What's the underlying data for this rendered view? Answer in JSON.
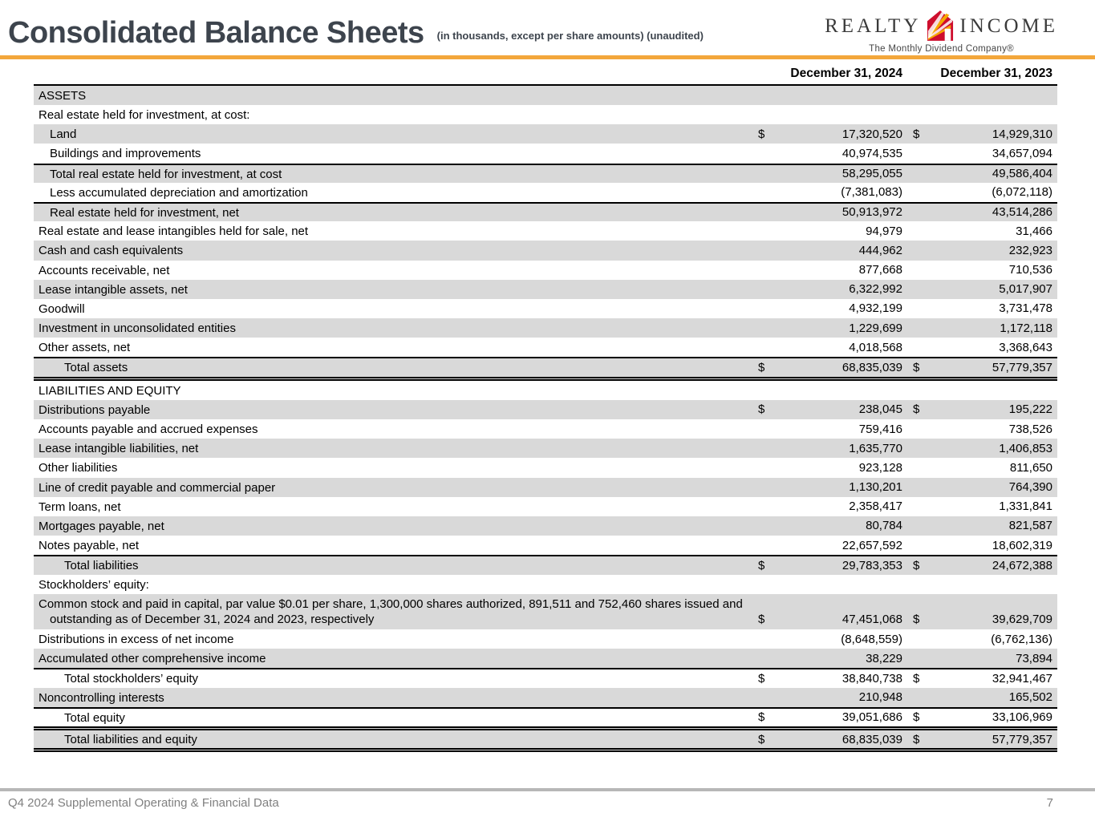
{
  "page": {
    "title": "Consolidated Balance Sheets",
    "subtitle": "(in thousands, except per share amounts) (unaudited)"
  },
  "logo": {
    "word_left": "REALTY",
    "word_right": "INCOME",
    "tagline": "The Monthly Dividend Company®"
  },
  "colors": {
    "accent_gold": "#F3A73B",
    "row_shade": "#D9D9D9",
    "title_text": "#3D444D",
    "logo_house_red": "#CE0E2D",
    "logo_ray_orange": "#F6A800",
    "footer_gray": "#808080"
  },
  "table": {
    "columns": [
      "December 31, 2024",
      "December 31, 2023"
    ],
    "rows": [
      {
        "label": "ASSETS",
        "d1": "",
        "v1": "",
        "d2": "",
        "v2": "",
        "indent": 0,
        "shade": true
      },
      {
        "label": "Real estate held for investment, at cost:",
        "d1": "",
        "v1": "",
        "d2": "",
        "v2": "",
        "indent": 0,
        "shade": false
      },
      {
        "label": "Land",
        "d1": "$",
        "v1": "17,320,520",
        "d2": "$",
        "v2": "14,929,310",
        "indent": 1,
        "shade": true
      },
      {
        "label": "Buildings and improvements",
        "d1": "",
        "v1": "40,974,535",
        "d2": "",
        "v2": "34,657,094",
        "indent": 1,
        "shade": false
      },
      {
        "label": "Total real estate held for investment, at cost",
        "d1": "",
        "v1": "58,295,055",
        "d2": "",
        "v2": "49,586,404",
        "indent": 1,
        "shade": true,
        "bt": "single"
      },
      {
        "label": "Less accumulated depreciation and amortization",
        "d1": "",
        "v1": "(7,381,083)",
        "d2": "",
        "v2": "(6,072,118)",
        "indent": 1,
        "shade": false
      },
      {
        "label": "Real estate held for investment, net",
        "d1": "",
        "v1": "50,913,972",
        "d2": "",
        "v2": "43,514,286",
        "indent": 1,
        "shade": true,
        "bt": "single"
      },
      {
        "label": "Real estate and lease intangibles held for sale, net",
        "d1": "",
        "v1": "94,979",
        "d2": "",
        "v2": "31,466",
        "indent": 0,
        "shade": false
      },
      {
        "label": "Cash and cash equivalents",
        "d1": "",
        "v1": "444,962",
        "d2": "",
        "v2": "232,923",
        "indent": 0,
        "shade": true
      },
      {
        "label": "Accounts receivable, net",
        "d1": "",
        "v1": "877,668",
        "d2": "",
        "v2": "710,536",
        "indent": 0,
        "shade": false
      },
      {
        "label": "Lease intangible assets, net",
        "d1": "",
        "v1": "6,322,992",
        "d2": "",
        "v2": "5,017,907",
        "indent": 0,
        "shade": true
      },
      {
        "label": "Goodwill",
        "d1": "",
        "v1": "4,932,199",
        "d2": "",
        "v2": "3,731,478",
        "indent": 0,
        "shade": false
      },
      {
        "label": "Investment in unconsolidated entities",
        "d1": "",
        "v1": "1,229,699",
        "d2": "",
        "v2": "1,172,118",
        "indent": 0,
        "shade": true
      },
      {
        "label": "Other assets, net",
        "d1": "",
        "v1": "4,018,568",
        "d2": "",
        "v2": "3,368,643",
        "indent": 0,
        "shade": false
      },
      {
        "label": "Total assets",
        "d1": "$",
        "v1": "68,835,039",
        "d2": "$",
        "v2": "57,779,357",
        "indent": 2,
        "shade": true,
        "bt": "single",
        "bb": "double"
      },
      {
        "label": "LIABILITIES AND EQUITY",
        "d1": "",
        "v1": "",
        "d2": "",
        "v2": "",
        "indent": 0,
        "shade": false
      },
      {
        "label": "Distributions payable",
        "d1": "$",
        "v1": "238,045",
        "d2": "$",
        "v2": "195,222",
        "indent": 0,
        "shade": true
      },
      {
        "label": "Accounts payable and accrued expenses",
        "d1": "",
        "v1": "759,416",
        "d2": "",
        "v2": "738,526",
        "indent": 0,
        "shade": false
      },
      {
        "label": "Lease intangible liabilities, net",
        "d1": "",
        "v1": "1,635,770",
        "d2": "",
        "v2": "1,406,853",
        "indent": 0,
        "shade": true
      },
      {
        "label": "Other liabilities",
        "d1": "",
        "v1": "923,128",
        "d2": "",
        "v2": "811,650",
        "indent": 0,
        "shade": false
      },
      {
        "label": "Line of credit payable and commercial paper",
        "d1": "",
        "v1": "1,130,201",
        "d2": "",
        "v2": "764,390",
        "indent": 0,
        "shade": true
      },
      {
        "label": "Term loans, net",
        "d1": "",
        "v1": "2,358,417",
        "d2": "",
        "v2": "1,331,841",
        "indent": 0,
        "shade": false
      },
      {
        "label": "Mortgages payable, net",
        "d1": "",
        "v1": "80,784",
        "d2": "",
        "v2": "821,587",
        "indent": 0,
        "shade": true
      },
      {
        "label": "Notes payable, net",
        "d1": "",
        "v1": "22,657,592",
        "d2": "",
        "v2": "18,602,319",
        "indent": 0,
        "shade": false
      },
      {
        "label": "Total liabilities",
        "d1": "$",
        "v1": "29,783,353",
        "d2": "$",
        "v2": "24,672,388",
        "indent": 2,
        "shade": true,
        "bt": "single"
      },
      {
        "label": "Stockholders’ equity:",
        "d1": "",
        "v1": "",
        "d2": "",
        "v2": "",
        "indent": 0,
        "shade": false
      },
      {
        "label": "Common stock and paid in capital, par value $0.01 per share, 1,300,000 shares authorized, 891,511 and 752,460 shares issued and outstanding as of December 31, 2024 and 2023, respectively",
        "d1": "$",
        "v1": "47,451,068",
        "d2": "$",
        "v2": "39,629,709",
        "indent": 0,
        "shade": true,
        "wrap": true
      },
      {
        "label": "Distributions in excess of net income",
        "d1": "",
        "v1": "(8,648,559)",
        "d2": "",
        "v2": "(6,762,136)",
        "indent": 0,
        "shade": false
      },
      {
        "label": "Accumulated other comprehensive income",
        "d1": "",
        "v1": "38,229",
        "d2": "",
        "v2": "73,894",
        "indent": 0,
        "shade": true
      },
      {
        "label": "Total stockholders’ equity",
        "d1": "$",
        "v1": "38,840,738",
        "d2": "$",
        "v2": "32,941,467",
        "indent": 2,
        "shade": false,
        "bt": "single"
      },
      {
        "label": "Noncontrolling interests",
        "d1": "",
        "v1": "210,948",
        "d2": "",
        "v2": "165,502",
        "indent": 0,
        "shade": true
      },
      {
        "label": "Total equity",
        "d1": "$",
        "v1": "39,051,686",
        "d2": "$",
        "v2": "33,106,969",
        "indent": 2,
        "shade": false,
        "bt": "single"
      },
      {
        "label": "Total liabilities and equity",
        "d1": "$",
        "v1": "68,835,039",
        "d2": "$",
        "v2": "57,779,357",
        "indent": 2,
        "shade": true,
        "bt": "double",
        "bb": "double"
      }
    ]
  },
  "footer": {
    "label": "Q4 2024 Supplemental Operating & Financial Data",
    "page_number": "7"
  }
}
